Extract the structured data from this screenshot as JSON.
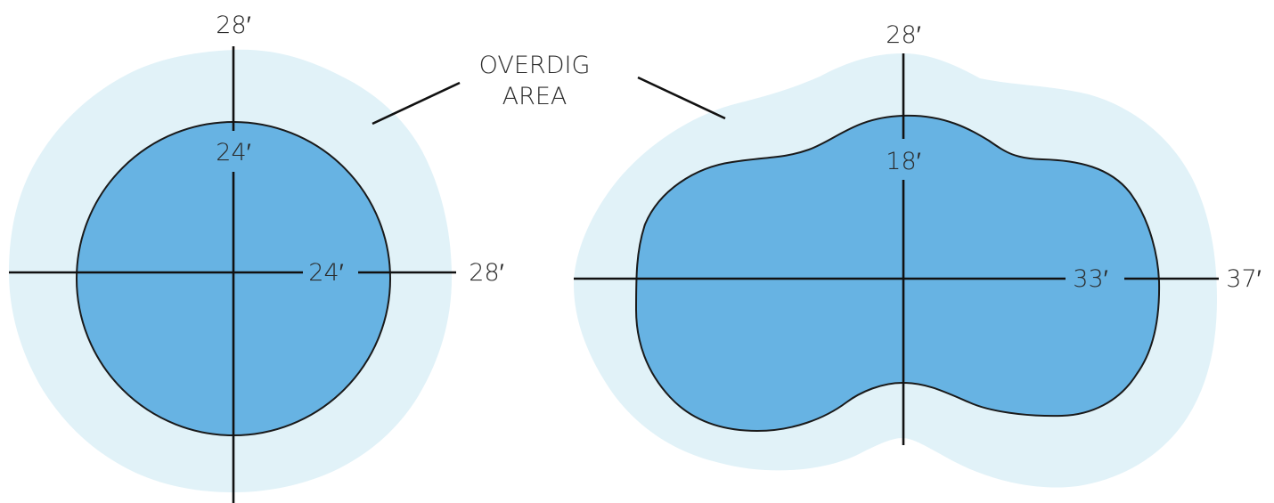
{
  "colors": {
    "overdig": "#e1f2f8",
    "pool": "#67b3e3",
    "line": "#111111",
    "text": "#2b2b2b"
  },
  "callout": {
    "line1": "OVERDIG",
    "line2": "AREA"
  },
  "round_pool": {
    "overdig_vertical": "28′",
    "pool_vertical": "24′",
    "pool_horizontal": "24′",
    "overdig_horizontal": "28′"
  },
  "kidney_pool": {
    "overdig_vertical": "28′",
    "pool_vertical": "18′",
    "pool_horizontal": "33′",
    "overdig_horizontal": "37′"
  }
}
